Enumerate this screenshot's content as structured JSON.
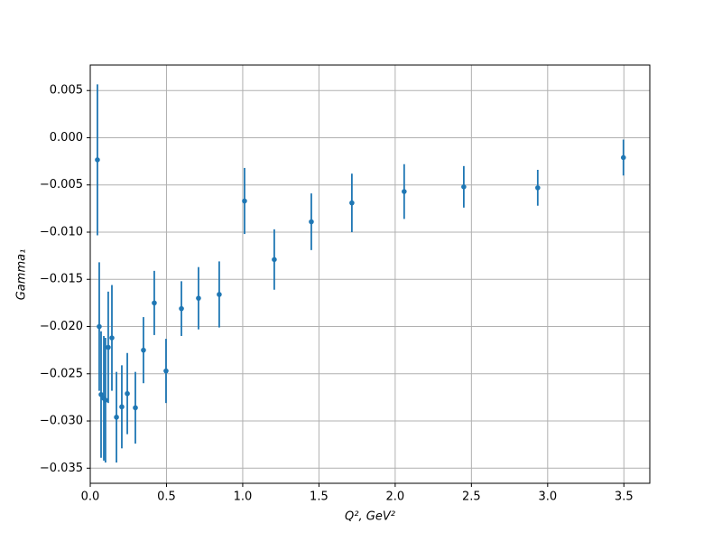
{
  "chart_data": {
    "type": "errorbar",
    "xlabel": "Q², GeV²",
    "ylabel": "Gamma₁",
    "xlim": [
      0,
      3.67
    ],
    "ylim": [
      -0.0366,
      0.0077
    ],
    "xticks": [
      {
        "value": 0,
        "label": "0.0"
      },
      0.5,
      {
        "value": 1,
        "label": "1.0"
      },
      1.5,
      {
        "value": 2,
        "label": "2.0"
      },
      2.5,
      {
        "value": 3,
        "label": "3.0"
      },
      3.5
    ],
    "yticks": [
      {
        "value": 0.005,
        "label": "0.005"
      },
      {
        "value": 0,
        "label": "0.000"
      },
      {
        "value": -0.005,
        "label": "−0.005"
      },
      {
        "value": -0.01,
        "label": "−0.010"
      },
      {
        "value": -0.015,
        "label": "−0.015"
      },
      {
        "value": -0.02,
        "label": "−0.020"
      },
      {
        "value": -0.025,
        "label": "−0.025"
      },
      {
        "value": -0.03,
        "label": "−0.030"
      },
      {
        "value": -0.035,
        "label": "−0.035"
      }
    ],
    "grid": true,
    "series": [
      {
        "color": "#1f77b4",
        "x": [
          0.047,
          0.059,
          0.071,
          0.089,
          0.1,
          0.118,
          0.142,
          0.172,
          0.207,
          0.243,
          0.296,
          0.349,
          0.42,
          0.497,
          0.598,
          0.71,
          0.846,
          1.012,
          1.207,
          1.45,
          1.716,
          2.059,
          2.45,
          2.935,
          3.497
        ],
        "values": [
          -0.00234,
          -0.02,
          -0.0272,
          -0.0276,
          -0.0278,
          -0.0222,
          -0.0212,
          -0.0296,
          -0.0285,
          -0.0271,
          -0.0286,
          -0.0225,
          -0.0175,
          -0.0247,
          -0.0181,
          -0.017,
          -0.0166,
          -0.0067,
          -0.0129,
          -0.0089,
          -0.0069,
          -0.0057,
          -0.0052,
          -0.0053,
          -0.0021
        ],
        "errors": [
          0.008,
          0.0068,
          0.0067,
          0.0066,
          0.0066,
          0.0059,
          0.0056,
          0.0048,
          0.0044,
          0.0043,
          0.0038,
          0.0035,
          0.0034,
          0.0034,
          0.0029,
          0.0033,
          0.0035,
          0.0035,
          0.0032,
          0.003,
          0.0031,
          0.0029,
          0.0022,
          0.0019,
          0.0019
        ]
      }
    ]
  }
}
